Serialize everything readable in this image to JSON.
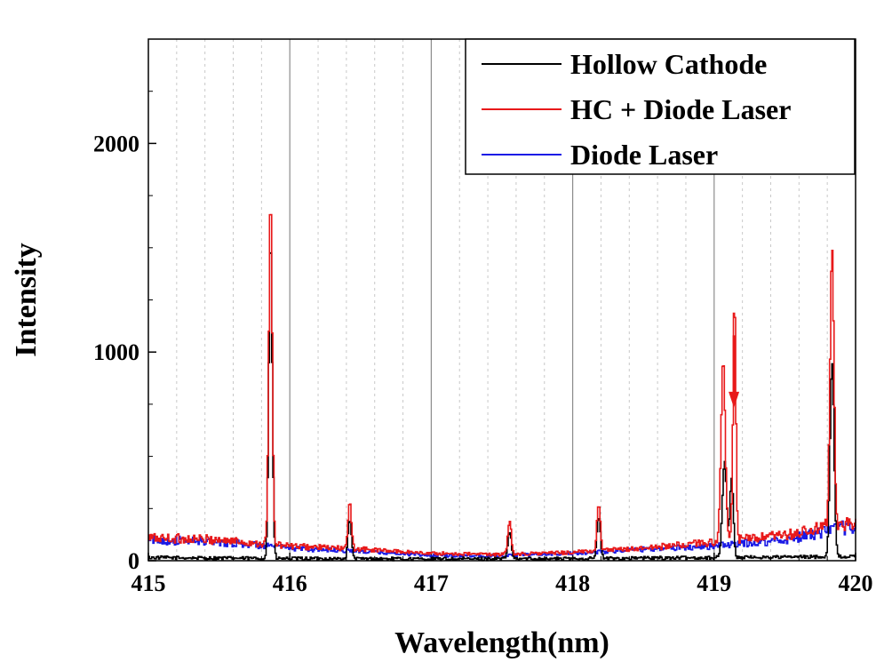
{
  "chart_data": {
    "type": "line",
    "title": "",
    "xlabel": "Wavelength(nm)",
    "ylabel": "Intensity",
    "xlim": [
      415,
      420
    ],
    "ylim": [
      0,
      2500
    ],
    "x_ticks": [
      415,
      416,
      417,
      418,
      419,
      420
    ],
    "x_tick_labels": [
      "415",
      "416",
      "417",
      "418",
      "419",
      "420"
    ],
    "y_ticks": [
      0,
      1000,
      2000
    ],
    "y_tick_labels": [
      "0",
      "1000",
      "2000"
    ],
    "y_minor_step": 250,
    "x_minor_step": 0.2,
    "grid": "vertical",
    "legend_position": "top-right",
    "series": [
      {
        "name": "Hollow Cathode",
        "color": "#000000",
        "baseline": [
          [
            415,
            15
          ],
          [
            416,
            10
          ],
          [
            417,
            8
          ],
          [
            418,
            10
          ],
          [
            419,
            15
          ],
          [
            420,
            20
          ]
        ],
        "peaks": [
          {
            "center": 415.86,
            "height": 1550,
            "width": 0.012
          },
          {
            "center": 416.42,
            "height": 190,
            "width": 0.012
          },
          {
            "center": 417.55,
            "height": 130,
            "width": 0.012
          },
          {
            "center": 418.18,
            "height": 200,
            "width": 0.012
          },
          {
            "center": 419.07,
            "height": 460,
            "width": 0.015
          },
          {
            "center": 419.12,
            "height": 380,
            "width": 0.012
          },
          {
            "center": 419.83,
            "height": 940,
            "width": 0.014
          }
        ]
      },
      {
        "name": "HC + Diode Laser",
        "color": "#e8191a",
        "baseline": [
          [
            415,
            110
          ],
          [
            415.5,
            100
          ],
          [
            416,
            70
          ],
          [
            416.5,
            55
          ],
          [
            417,
            35
          ],
          [
            417.5,
            30
          ],
          [
            418,
            40
          ],
          [
            418.5,
            60
          ],
          [
            419,
            90
          ],
          [
            419.5,
            120
          ],
          [
            420,
            190
          ]
        ],
        "peaks": [
          {
            "center": 415.86,
            "height": 1670,
            "width": 0.012
          },
          {
            "center": 416.42,
            "height": 215,
            "width": 0.012
          },
          {
            "center": 417.55,
            "height": 160,
            "width": 0.012
          },
          {
            "center": 418.18,
            "height": 230,
            "width": 0.012
          },
          {
            "center": 419.06,
            "height": 850,
            "width": 0.015
          },
          {
            "center": 419.14,
            "height": 1160,
            "width": 0.01
          },
          {
            "center": 419.83,
            "height": 1300,
            "width": 0.014
          }
        ]
      },
      {
        "name": "Diode Laser",
        "color": "#1a1ae6",
        "baseline": [
          [
            415,
            100
          ],
          [
            415.5,
            90
          ],
          [
            416,
            60
          ],
          [
            416.5,
            45
          ],
          [
            417,
            25
          ],
          [
            417.5,
            25
          ],
          [
            418,
            35
          ],
          [
            418.5,
            55
          ],
          [
            419,
            70
          ],
          [
            419.5,
            100
          ],
          [
            420,
            170
          ]
        ],
        "peaks": []
      }
    ],
    "annotations": [
      {
        "type": "arrow",
        "x": 419.14,
        "y_from": 1080,
        "y_to": 750,
        "color": "#e8191a"
      }
    ]
  }
}
